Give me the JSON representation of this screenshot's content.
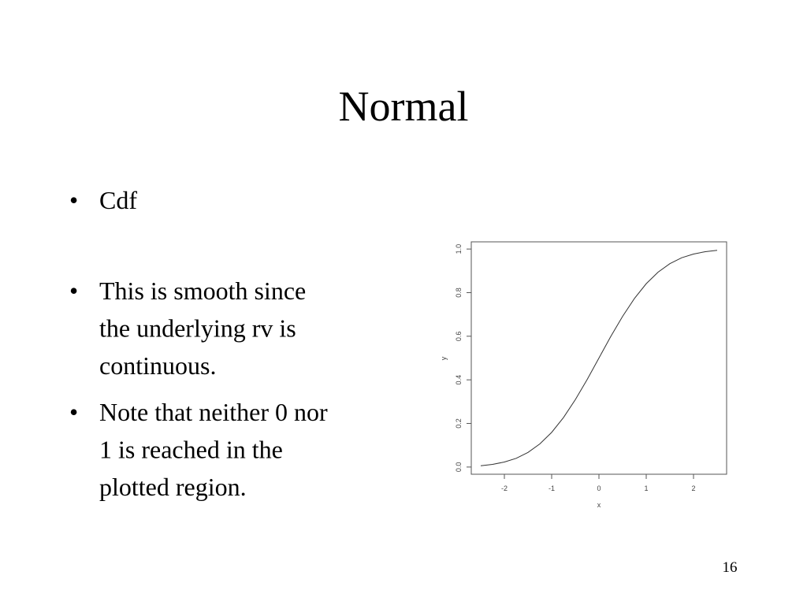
{
  "slide": {
    "title": "Normal",
    "bullets": [
      [
        "Cdf"
      ],
      [
        "This is smooth since",
        "the underlying rv is",
        "continuous."
      ],
      [
        "Note that neither 0 nor",
        "1 is reached in the",
        "plotted region."
      ]
    ],
    "page_number": "16"
  },
  "chart_data": {
    "type": "line",
    "x_label": "x",
    "y_label": "y",
    "x": [
      -2.5,
      -2.25,
      -2,
      -1.75,
      -1.5,
      -1.25,
      -1,
      -0.75,
      -0.5,
      -0.25,
      0,
      0.25,
      0.5,
      0.75,
      1,
      1.25,
      1.5,
      1.75,
      2,
      2.25,
      2.5
    ],
    "series": [
      {
        "color": "#333333",
        "values": [
          0.006,
          0.012,
          0.023,
          0.04,
          0.067,
          0.106,
          0.159,
          0.227,
          0.309,
          0.401,
          0.5,
          0.599,
          0.691,
          0.773,
          0.841,
          0.894,
          0.933,
          0.96,
          0.977,
          0.988,
          0.994
        ]
      }
    ],
    "xlim": [
      -2.7,
      2.7
    ],
    "ylim": [
      -0.033,
      1.033
    ],
    "xticks": [
      -2,
      -1,
      0,
      1,
      2
    ],
    "yticks": [
      {
        "value": 0,
        "label": "0.0"
      },
      0.2,
      0.4,
      0.6,
      0.8,
      {
        "value": 1,
        "label": "1.0"
      }
    ]
  }
}
